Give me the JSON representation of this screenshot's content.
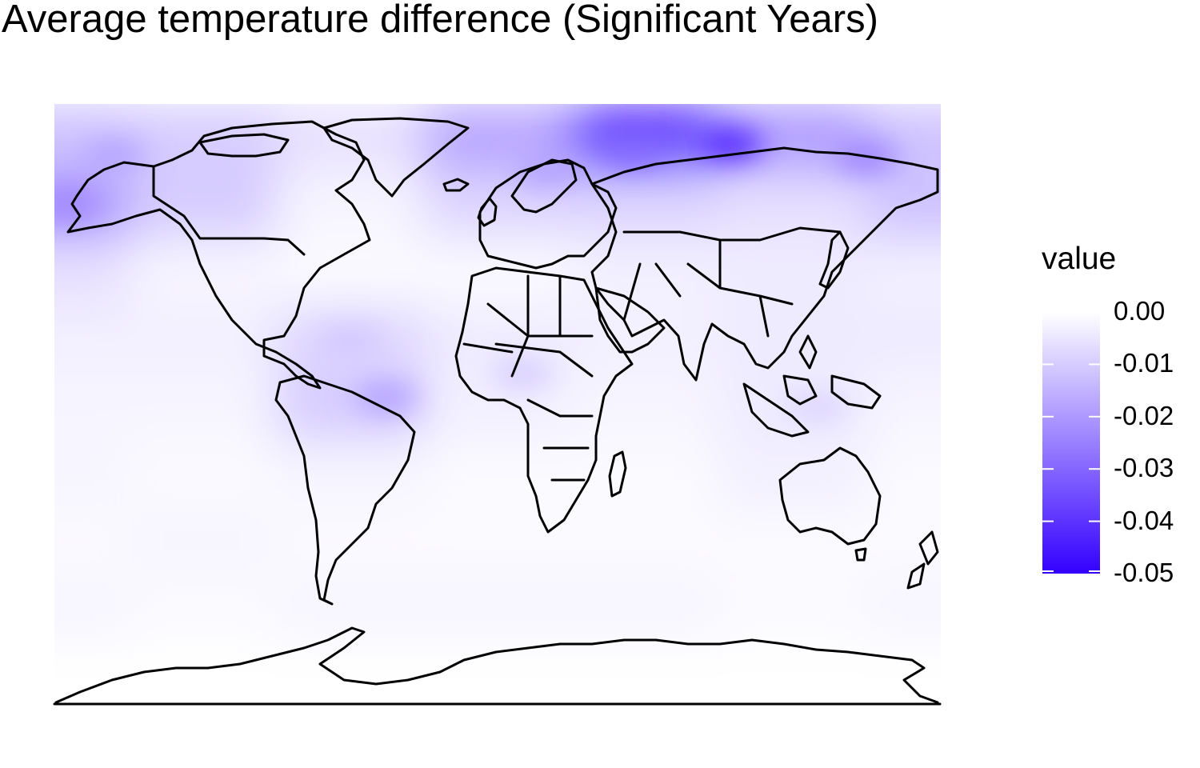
{
  "title": "Average temperature difference (Significant Years)",
  "legend": {
    "title": "value",
    "min": -0.05,
    "max": 0.0,
    "low_color": "#3300ff",
    "high_color": "#ffffff",
    "ticks": [
      {
        "value": 0.0,
        "label": "0.00"
      },
      {
        "value": -0.01,
        "label": "-0.01"
      },
      {
        "value": -0.02,
        "label": "-0.02"
      },
      {
        "value": -0.03,
        "label": "-0.03"
      },
      {
        "value": -0.04,
        "label": "-0.04"
      },
      {
        "value": -0.05,
        "label": "-0.05"
      }
    ]
  },
  "map": {
    "projection": "equirectangular",
    "lon_range": [
      -180,
      180
    ],
    "lat_range": [
      -90,
      90
    ],
    "border_color": "#000000",
    "background": "#ffffff"
  },
  "chart_data": {
    "type": "heatmap",
    "title": "Average temperature difference (Significant Years)",
    "color_scale": {
      "low": "#3300ff",
      "high": "#ffffff",
      "range": [
        -0.05,
        0.0
      ]
    },
    "grid_lon": [
      -180,
      -120,
      -60,
      0,
      60,
      120,
      180
    ],
    "grid_lat": [
      80,
      60,
      40,
      20,
      0,
      -20,
      -40,
      -60
    ],
    "values": [
      [
        -0.012,
        -0.01,
        -0.006,
        -0.018,
        -0.04,
        -0.02,
        -0.012
      ],
      [
        -0.02,
        -0.01,
        -0.002,
        -0.008,
        -0.008,
        -0.006,
        -0.012
      ],
      [
        -0.006,
        -0.002,
        -0.001,
        -0.001,
        -0.003,
        -0.004,
        -0.003
      ],
      [
        -0.003,
        -0.003,
        -0.008,
        -0.004,
        -0.003,
        -0.004,
        -0.004
      ],
      [
        -0.002,
        -0.002,
        -0.01,
        -0.003,
        -0.002,
        -0.004,
        -0.002
      ],
      [
        -0.002,
        -0.001,
        -0.002,
        -0.001,
        -0.001,
        -0.003,
        -0.001
      ],
      [
        -0.001,
        -0.002,
        -0.001,
        -0.001,
        -0.001,
        -0.001,
        -0.001
      ],
      [
        -0.002,
        -0.001,
        -0.002,
        -0.002,
        -0.002,
        -0.001,
        -0.002
      ]
    ],
    "hotspots": [
      {
        "lon": 95,
        "lat": 78,
        "value": -0.05
      },
      {
        "lon": 55,
        "lat": 76,
        "value": -0.03
      },
      {
        "lon": 150,
        "lat": 74,
        "value": -0.028
      },
      {
        "lon": -175,
        "lat": 60,
        "value": -0.025
      },
      {
        "lon": -155,
        "lat": 75,
        "value": -0.02
      },
      {
        "lon": 20,
        "lat": 70,
        "value": -0.02
      },
      {
        "lon": -45,
        "lat": 3,
        "value": -0.022
      },
      {
        "lon": -60,
        "lat": 20,
        "value": -0.012
      },
      {
        "lon": 10,
        "lat": 10,
        "value": -0.012
      },
      {
        "lon": 130,
        "lat": 0,
        "value": -0.01
      }
    ]
  }
}
